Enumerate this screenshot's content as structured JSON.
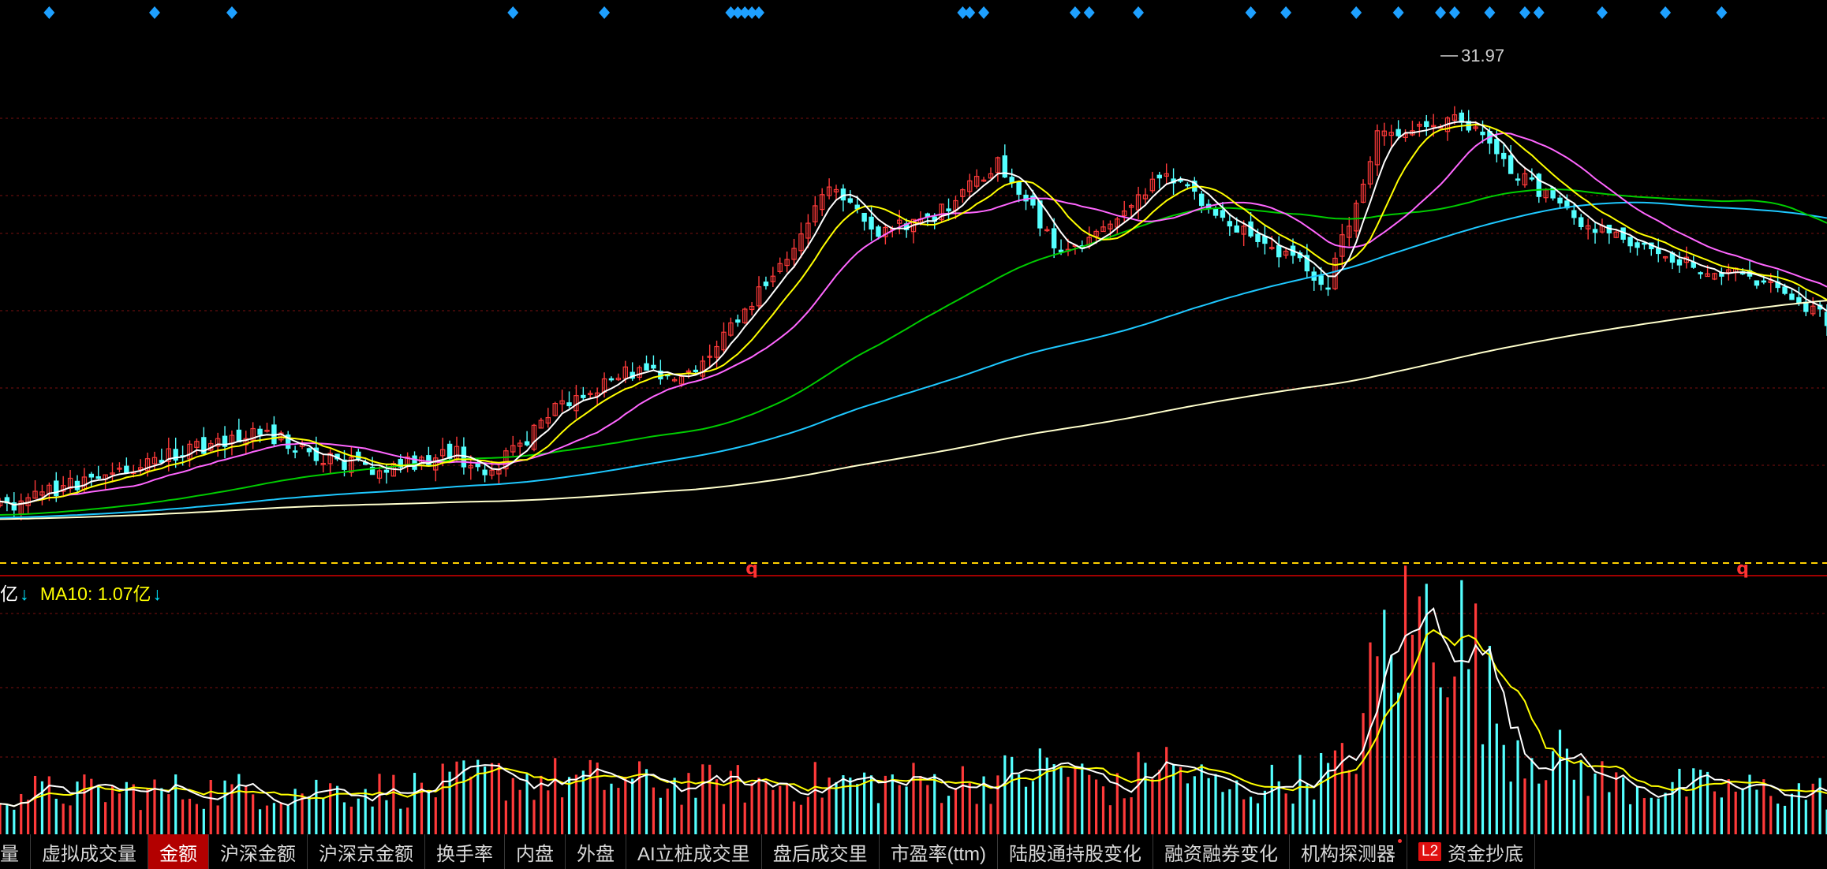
{
  "chart_data": [
    {
      "type": "candlestick",
      "title": "",
      "annotations": [
        {
          "text": "31.97",
          "bar_index": 205,
          "note": "highest price marker"
        }
      ],
      "signal_marker_bars": [
        7,
        22,
        33,
        73,
        86,
        104,
        105,
        106,
        107,
        108,
        137,
        138,
        140,
        153,
        155,
        162,
        178,
        183,
        193,
        199,
        205,
        207,
        212,
        217,
        219,
        228,
        237,
        245
      ],
      "period_marker_text": "q",
      "period_marker_bars": [
        107,
        248
      ],
      "moving_averages": [
        "MA5",
        "MA10",
        "MA20",
        "MA60",
        "MA120",
        "MA250"
      ],
      "colors": {
        "up": "#ff3a3a",
        "down": "#54ffff",
        "ma5": "#ffffff",
        "ma10": "#ffff00",
        "ma20": "#ff66ff",
        "ma60": "#00cc00",
        "ma120": "#1ec8ff",
        "ma250": "#ffffcc"
      },
      "price_path_keypoints": [
        [
          0,
          11.2
        ],
        [
          12,
          12.5
        ],
        [
          37,
          14.8
        ],
        [
          46,
          13.5
        ],
        [
          54,
          13.0
        ],
        [
          65,
          13.7
        ],
        [
          69,
          12.6
        ],
        [
          80,
          16.0
        ],
        [
          92,
          17.8
        ],
        [
          97,
          16.9
        ],
        [
          111,
          22.3
        ],
        [
          118,
          26.0
        ],
        [
          125,
          24.0
        ],
        [
          132,
          24.3
        ],
        [
          142,
          27.0
        ],
        [
          151,
          23.0
        ],
        [
          159,
          24.2
        ],
        [
          165,
          26.7
        ],
        [
          180,
          23.3
        ],
        [
          189,
          21.6
        ],
        [
          196,
          28.2
        ],
        [
          208,
          29.2
        ],
        [
          215,
          26.8
        ],
        [
          226,
          24.1
        ],
        [
          240,
          22.4
        ],
        [
          251,
          21.6
        ],
        [
          260,
          19.8
        ]
      ]
    },
    {
      "type": "bar",
      "legend": [
        {
          "text": "亿",
          "color": "#ffffff",
          "arrow": "↓",
          "arrow_color": "#00e5ff"
        },
        {
          "text": "MA10: 1.07亿",
          "color": "#ffff00",
          "arrow": "↓",
          "arrow_color": "#00e5ff"
        }
      ],
      "series_note": "turnover amount per bar, red = up day, cyan = down day, with 5 and 10 period moving averages",
      "volume_keypoints": [
        [
          0,
          0.55
        ],
        [
          60,
          0.6
        ],
        [
          70,
          0.75
        ],
        [
          100,
          0.65
        ],
        [
          140,
          0.7
        ],
        [
          150,
          0.9
        ],
        [
          160,
          0.55
        ],
        [
          164,
          1.0
        ],
        [
          175,
          0.55
        ],
        [
          192,
          0.9
        ],
        [
          197,
          2.5
        ],
        [
          205,
          3.0
        ],
        [
          210,
          2.3
        ],
        [
          214,
          1.3
        ],
        [
          230,
          0.65
        ],
        [
          260,
          0.55
        ]
      ],
      "ma10_last": "1.07亿"
    }
  ],
  "tabs": [
    {
      "label": "量",
      "active": false
    },
    {
      "label": "虚拟成交量",
      "active": false
    },
    {
      "label": "金额",
      "active": true
    },
    {
      "label": "沪深金额",
      "active": false
    },
    {
      "label": "沪深京金额",
      "active": false
    },
    {
      "label": "换手率",
      "active": false
    },
    {
      "label": "内盘",
      "active": false
    },
    {
      "label": "外盘",
      "active": false
    },
    {
      "label": "AI立桩成交里",
      "active": false
    },
    {
      "label": "盘后成交里",
      "active": false
    },
    {
      "label": "市盈率(ttm)",
      "active": false
    },
    {
      "label": "陆股通持股变化",
      "active": false
    },
    {
      "label": "融资融券变化",
      "active": false
    },
    {
      "label": "机构探测器",
      "active": false,
      "dot": true
    },
    {
      "label": "资金抄底",
      "active": false,
      "badge": "L2"
    }
  ]
}
